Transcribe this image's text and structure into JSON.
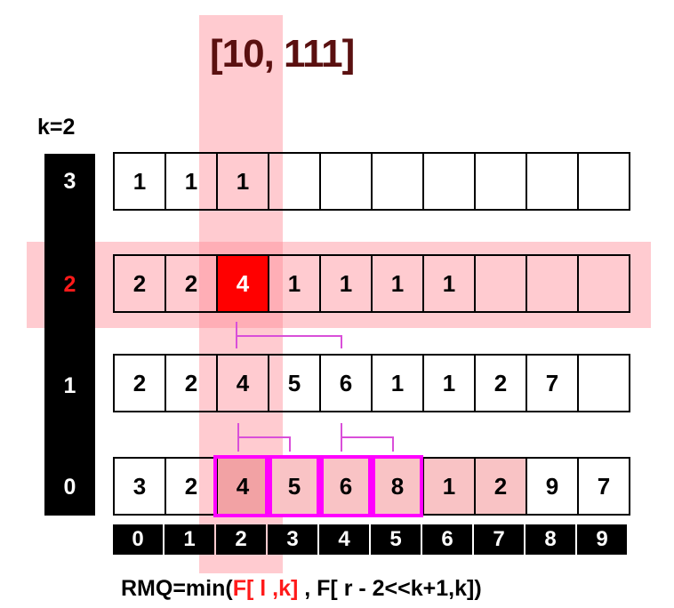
{
  "title": "[10, 111]",
  "k_label": "k=2",
  "levels": [
    "0",
    "1",
    "2",
    "3"
  ],
  "active_level": "2",
  "rows": {
    "level3": [
      "1",
      "1",
      "1",
      "",
      "",
      "",
      "",
      "",
      "",
      ""
    ],
    "level2": [
      "2",
      "2",
      "4",
      "1",
      "1",
      "1",
      "1",
      "",
      "",
      ""
    ],
    "level1": [
      "2",
      "2",
      "4",
      "5",
      "6",
      "1",
      "1",
      "2",
      "7",
      ""
    ],
    "level0": [
      "3",
      "2",
      "4",
      "5",
      "6",
      "8",
      "1",
      "2",
      "9",
      "7"
    ]
  },
  "indices": [
    "0",
    "1",
    "2",
    "3",
    "4",
    "5",
    "6",
    "7",
    "8",
    "9"
  ],
  "formula": {
    "prefix": "RMQ=min(",
    "red_part": "F[ l ,k]",
    "rest": " , F[ r - 2<<k+1,k])"
  },
  "colors": {
    "highlight_band": "#ff8c96",
    "selected_cell": "#ff0000",
    "range_border": "#ff00ff",
    "link_line": "#d94fd9"
  }
}
